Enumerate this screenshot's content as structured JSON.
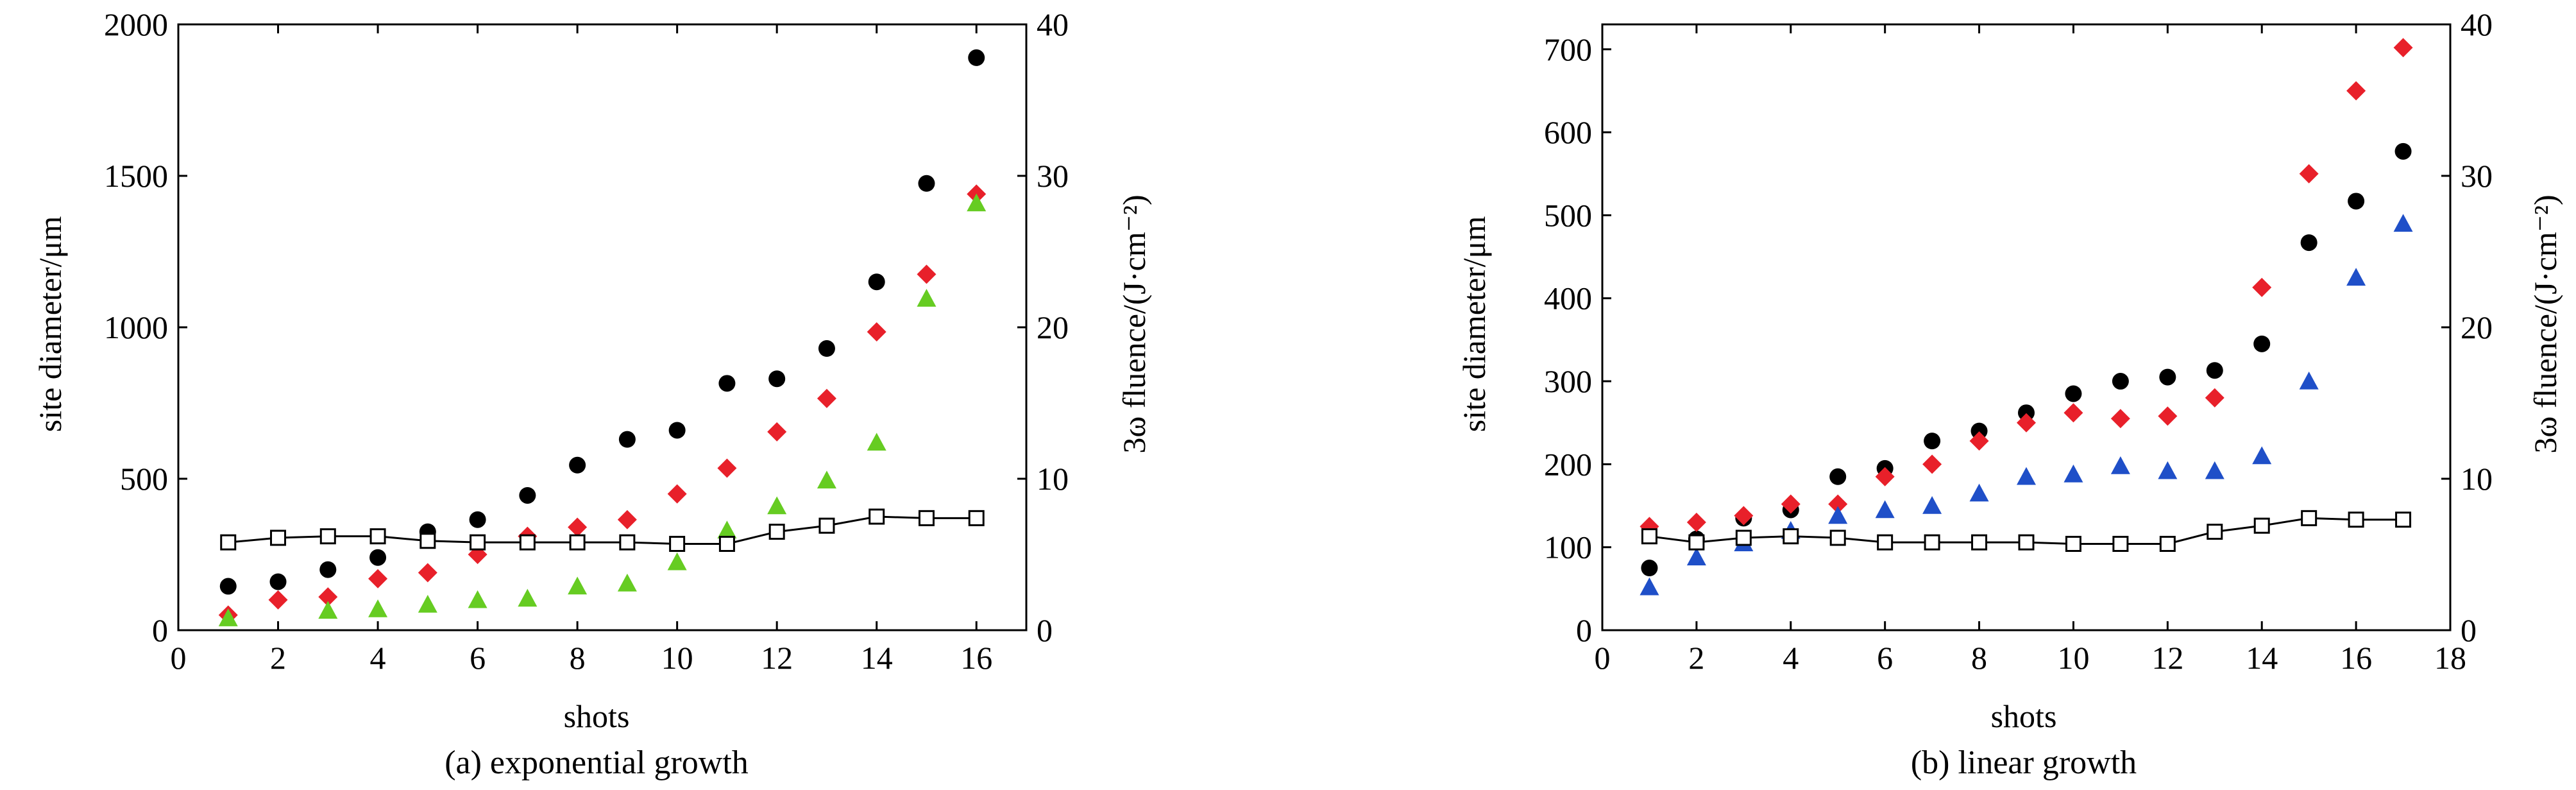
{
  "chart_data": [
    {
      "type": "scatter",
      "subtitle": "(a) exponential growth",
      "xlabel": "shots",
      "ylabel": "site diameter/μm",
      "y2label": "3ω fluence/(J·cm⁻²)",
      "xlim": [
        0,
        17
      ],
      "ylim": [
        0,
        2000
      ],
      "y2lim": [
        0,
        40
      ],
      "xticks": [
        "0",
        "2",
        "4",
        "6",
        "8",
        "10",
        "12",
        "14",
        "16"
      ],
      "yticks": [
        "0",
        "500",
        "1000",
        "1500",
        "2000"
      ],
      "y2ticks": [
        "0",
        "10",
        "20",
        "30",
        "40"
      ],
      "grid": false,
      "series": [
        {
          "marker": "circle",
          "color": "#000000",
          "axis": "left",
          "x": [
            1,
            2,
            3,
            4,
            5,
            6,
            7,
            8,
            9,
            10,
            11,
            12,
            13,
            14,
            15,
            16
          ],
          "y": [
            145,
            160,
            200,
            240,
            325,
            365,
            445,
            545,
            630,
            660,
            815,
            830,
            930,
            1150,
            1475,
            1890
          ]
        },
        {
          "marker": "diamond",
          "color": "#e8202a",
          "axis": "left",
          "x": [
            1,
            2,
            3,
            4,
            5,
            6,
            7,
            8,
            9,
            10,
            11,
            12,
            13,
            14,
            15,
            16
          ],
          "y": [
            50,
            100,
            110,
            170,
            190,
            250,
            310,
            340,
            365,
            450,
            535,
            655,
            765,
            985,
            1175,
            1440
          ]
        },
        {
          "marker": "triangle",
          "color": "#66cc22",
          "axis": "left",
          "x": [
            1,
            3,
            4,
            5,
            6,
            7,
            8,
            9,
            10,
            11,
            12,
            13,
            14,
            15,
            16
          ],
          "y": [
            40,
            65,
            70,
            85,
            100,
            105,
            145,
            155,
            225,
            330,
            410,
            495,
            620,
            1095,
            1410
          ]
        },
        {
          "marker": "open-square-line",
          "color": "#000000",
          "axis": "right",
          "x": [
            1,
            2,
            3,
            4,
            5,
            6,
            7,
            8,
            9,
            10,
            11,
            12,
            13,
            14,
            15,
            16
          ],
          "y": [
            5.8,
            6.1,
            6.2,
            6.2,
            5.9,
            5.8,
            5.8,
            5.8,
            5.8,
            5.7,
            5.7,
            6.5,
            6.9,
            7.5,
            7.4,
            7.4
          ]
        }
      ]
    },
    {
      "type": "scatter",
      "subtitle": "(b) linear growth",
      "xlabel": "shots",
      "ylabel": "site diameter/μm",
      "y2label": "3ω fluence/(J·cm⁻²)",
      "xlim": [
        0,
        18
      ],
      "ylim": [
        0,
        730
      ],
      "y2lim": [
        0,
        40
      ],
      "xticks": [
        "0",
        "2",
        "4",
        "6",
        "8",
        "10",
        "12",
        "14",
        "16",
        "18"
      ],
      "yticks": [
        "0",
        "100",
        "200",
        "300",
        "400",
        "500",
        "600",
        "700"
      ],
      "y2ticks": [
        "0",
        "10",
        "20",
        "30",
        "40"
      ],
      "grid": false,
      "series": [
        {
          "marker": "circle",
          "color": "#000000",
          "axis": "left",
          "x": [
            1,
            2,
            3,
            4,
            5,
            6,
            7,
            8,
            9,
            10,
            11,
            12,
            13,
            14,
            15,
            16,
            17
          ],
          "y": [
            75,
            110,
            135,
            145,
            185,
            195,
            228,
            240,
            262,
            285,
            300,
            305,
            313,
            345,
            467,
            517,
            577
          ]
        },
        {
          "marker": "diamond",
          "color": "#e8202a",
          "axis": "left",
          "x": [
            1,
            2,
            3,
            4,
            5,
            6,
            7,
            8,
            9,
            10,
            11,
            12,
            13,
            14,
            15,
            16,
            17
          ],
          "y": [
            125,
            130,
            138,
            152,
            152,
            185,
            200,
            228,
            250,
            262,
            255,
            258,
            280,
            413,
            550,
            650,
            702
          ]
        },
        {
          "marker": "triangle",
          "color": "#1f4fc8",
          "axis": "left",
          "x": [
            1,
            2,
            3,
            4,
            5,
            6,
            7,
            8,
            9,
            10,
            11,
            12,
            13,
            14,
            15,
            16,
            17
          ],
          "y": [
            52,
            88,
            105,
            120,
            138,
            145,
            150,
            165,
            185,
            188,
            198,
            192,
            192,
            210,
            300,
            425,
            490
          ]
        },
        {
          "marker": "open-square-line",
          "color": "#000000",
          "axis": "right",
          "x": [
            1,
            2,
            3,
            4,
            5,
            6,
            7,
            8,
            9,
            10,
            11,
            12,
            13,
            14,
            15,
            16,
            17
          ],
          "y": [
            6.2,
            5.8,
            6.1,
            6.2,
            6.1,
            5.8,
            5.8,
            5.8,
            5.8,
            5.7,
            5.7,
            5.7,
            6.5,
            6.9,
            7.4,
            7.3,
            7.3
          ]
        }
      ]
    }
  ]
}
